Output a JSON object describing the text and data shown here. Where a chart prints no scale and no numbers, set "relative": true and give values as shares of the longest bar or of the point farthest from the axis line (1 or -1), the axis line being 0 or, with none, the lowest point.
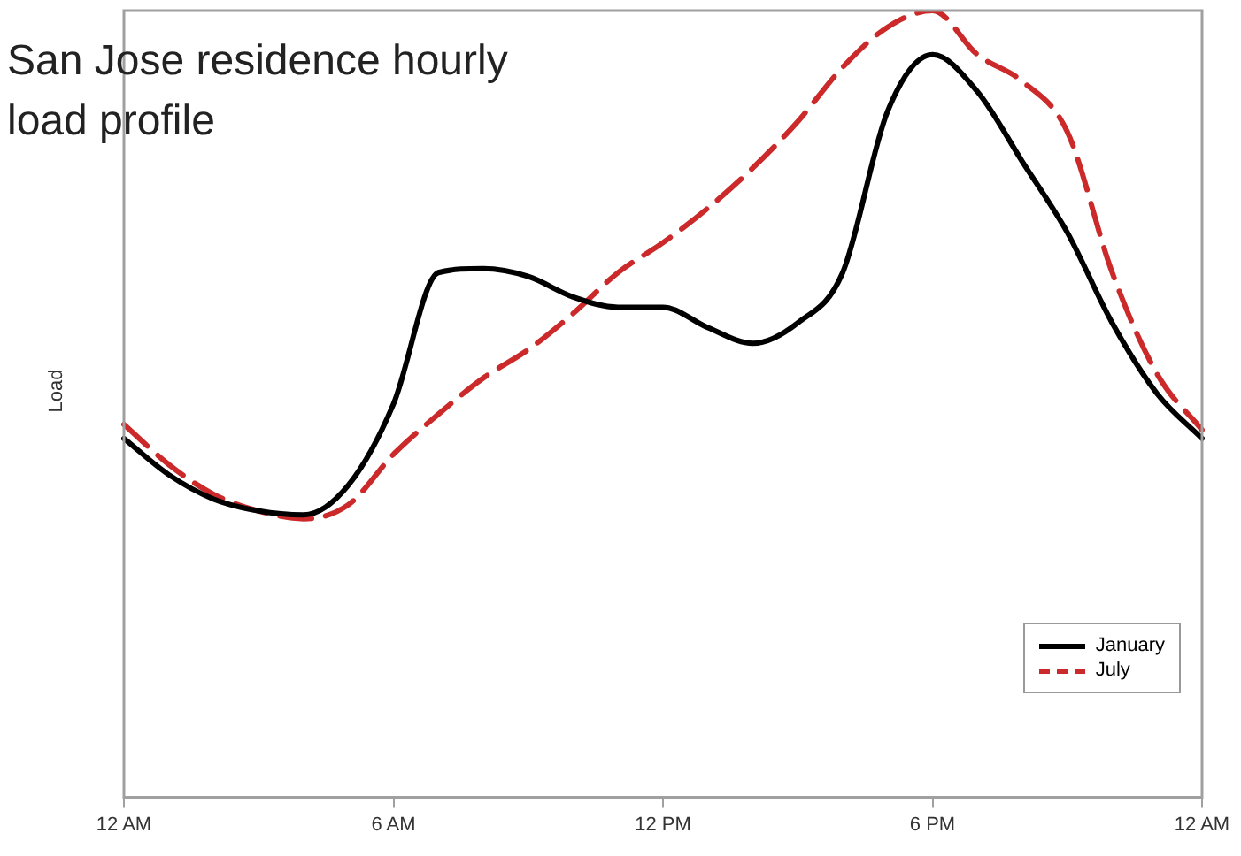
{
  "chart_data": {
    "type": "line",
    "title": "San Jose residence hourly load profile",
    "ylabel": "Load",
    "relative": true,
    "categories": [
      "12 AM",
      null,
      null,
      null,
      null,
      null,
      "6 AM",
      null,
      null,
      null,
      null,
      null,
      "12 PM",
      null,
      null,
      null,
      null,
      null,
      "6 PM",
      null,
      null,
      null,
      null,
      null,
      "12 AM"
    ],
    "series": [
      {
        "name": "January",
        "color": "#000000",
        "line_style": "solid",
        "values": [
          0.456,
          0.41,
          0.379,
          0.364,
          0.359,
          0.397,
          0.5,
          0.667,
          0.672,
          0.662,
          0.636,
          0.623,
          0.623,
          0.597,
          0.577,
          0.603,
          0.667,
          0.872,
          0.944,
          0.897,
          0.808,
          0.718,
          0.603,
          0.513,
          0.456
        ]
      },
      {
        "name": "July",
        "color": "#cc2a2a",
        "line_style": "dashed",
        "values": [
          0.474,
          0.423,
          0.385,
          0.364,
          0.354,
          0.372,
          0.436,
          0.487,
          0.533,
          0.569,
          0.615,
          0.667,
          0.705,
          0.749,
          0.8,
          0.859,
          0.928,
          0.979,
          1,
          0.944,
          0.91,
          0.846,
          0.667,
          0.538,
          0.467
        ]
      }
    ],
    "grid": false,
    "legend": "bottom right",
    "marker": "none"
  }
}
